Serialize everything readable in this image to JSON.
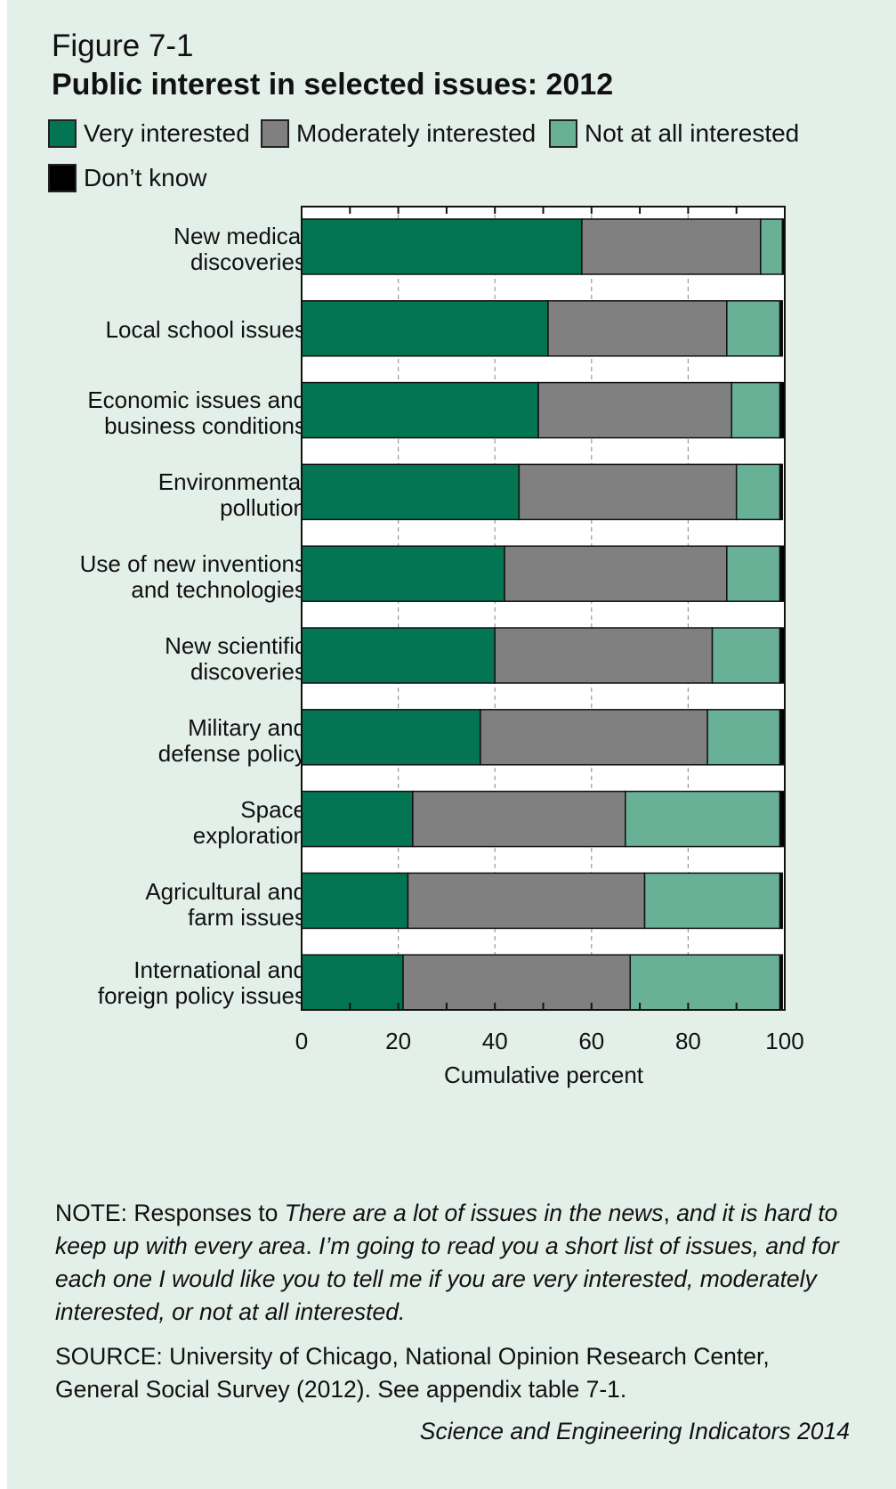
{
  "figure_label": "Figure 7-1",
  "title": "Public interest in selected issues: 2012",
  "colors": {
    "very": "#047552",
    "moderately": "#808080",
    "not_at_all": "#68b096",
    "dont_know": "#000000"
  },
  "legend": [
    {
      "key": "very",
      "label": "Very interested"
    },
    {
      "key": "moderately",
      "label": "Moderately interested"
    },
    {
      "key": "not_at_all",
      "label": "Not at all interested"
    },
    {
      "key": "dont_know",
      "label": "Don’t know"
    }
  ],
  "chart_data": {
    "type": "bar",
    "orientation": "horizontal",
    "stacked": true,
    "categories": [
      "New medical\ndiscoveries",
      "Local school issues",
      "Economic issues and\nbusiness conditions",
      "Environmental\npollution",
      "Use of new inventions\nand technologies",
      "New scientific\ndiscoveries",
      "Military and\ndefense policy",
      "Space\nexploration",
      "Agricultural and\nfarm issues",
      "International and\nforeign policy issues"
    ],
    "series": [
      {
        "name": "Very interested",
        "key": "very",
        "values": [
          58,
          51,
          49,
          45,
          42,
          40,
          37,
          23,
          22,
          21
        ]
      },
      {
        "name": "Moderately interested",
        "key": "moderately",
        "values": [
          37,
          37,
          40,
          45,
          46,
          45,
          47,
          44,
          49,
          47
        ]
      },
      {
        "name": "Not at all interested",
        "key": "not_at_all",
        "values": [
          4.5,
          11,
          10,
          9,
          11,
          14,
          15,
          32,
          28,
          31
        ]
      },
      {
        "name": "Don’t know",
        "key": "dont_know",
        "values": [
          0.5,
          0.5,
          1,
          0.5,
          1,
          1,
          1,
          1,
          0.5,
          0.5
        ]
      }
    ],
    "xlabel": "Cumulative percent",
    "xlim": [
      0,
      100
    ],
    "xticks": [
      0,
      20,
      40,
      60,
      80,
      100
    ],
    "grid": true,
    "legend_position": "top"
  },
  "note_prefix": "NOTE: Responses to ",
  "note_italic_1": "There are a lot of issues in the news",
  "note_mid": ", ",
  "note_italic_2": "and it is hard to keep up with every area",
  "note_dot": ". ",
  "note_italic_3": "I’m going to read you a short list of issues, and for each one I would like you to tell me if you are very interested, moderately interested, or not at all interested.",
  "source": "SOURCE: University of Chicago, National Opinion Research Center, General Social Survey (2012). See appendix table 7-1.",
  "credit": "Science and Engineering Indicators 2014"
}
